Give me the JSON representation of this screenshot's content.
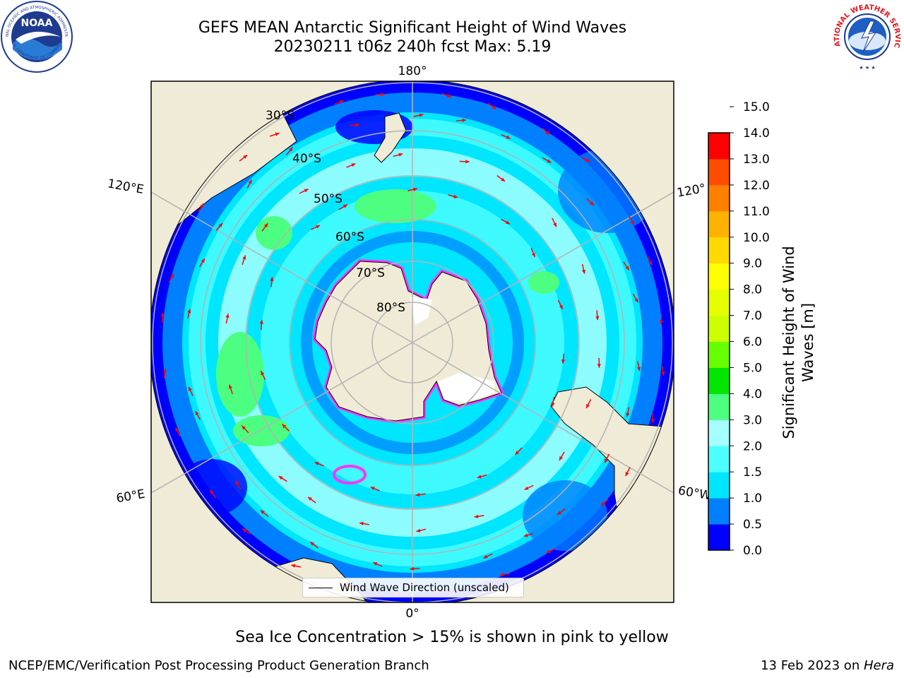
{
  "header": {
    "title_line1": "GEFS MEAN Antarctic Significant Height of Wind Waves",
    "title_line2": "20230211 t06z 240h fcst   Max: 5.19"
  },
  "logos": {
    "noaa": {
      "center_text": "NOAA",
      "ring_text_top": "NATIONAL OCEANIC AND ATMOSPHERIC ADMINISTRATION",
      "ring_text_bottom": "U.S. DEPARTMENT OF COMMERCE"
    },
    "nws": {
      "ring_text": "NATIONAL WEATHER SERVICE"
    }
  },
  "map": {
    "longitude_labels": {
      "top": "180°",
      "bottom": "0°",
      "upper_left": "120°E",
      "upper_right": "120°",
      "lower_left": "60°E",
      "lower_right": "60°W"
    },
    "latitude_labels": [
      "30°S",
      "40°S",
      "50°S",
      "60°S",
      "70°S",
      "80°S"
    ],
    "legend_label": "Wind Wave Direction (unscaled)",
    "colors": {
      "land": "#efebd6",
      "gridline": "#b3b3b3",
      "arrow": "#ff0000",
      "sea_ice": "#ff33ff"
    }
  },
  "colorbar": {
    "label": "Significant Height of Wind Waves [m]",
    "label_lines": [
      "Significant Height of Wind",
      "Waves [m]"
    ],
    "ticks": [
      "0.0",
      "0.5",
      "1.0",
      "1.5",
      "2.0",
      "3.0",
      "4.0",
      "5.0",
      "6.0",
      "7.0",
      "8.0",
      "9.0",
      "10.0",
      "11.0",
      "12.0",
      "13.0",
      "14.0",
      "15.0"
    ],
    "colors": [
      "#0000ff",
      "#0080ff",
      "#00e6ff",
      "#4dffff",
      "#a6ffff",
      "#4dff80",
      "#00e600",
      "#66ff00",
      "#ccff00",
      "#e6ff00",
      "#ffff00",
      "#ffd900",
      "#ffb300",
      "#ff8000",
      "#ff4d00",
      "#ff0000"
    ]
  },
  "footer": {
    "sea_ice_note": "Sea Ice Concentration > 15% is shown in pink to yellow",
    "credit_left": "NCEP/EMC/Verification Post Processing Product Generation Branch",
    "credit_right_date": "13 Feb 2023 on ",
    "credit_right_machine": "Hera"
  }
}
